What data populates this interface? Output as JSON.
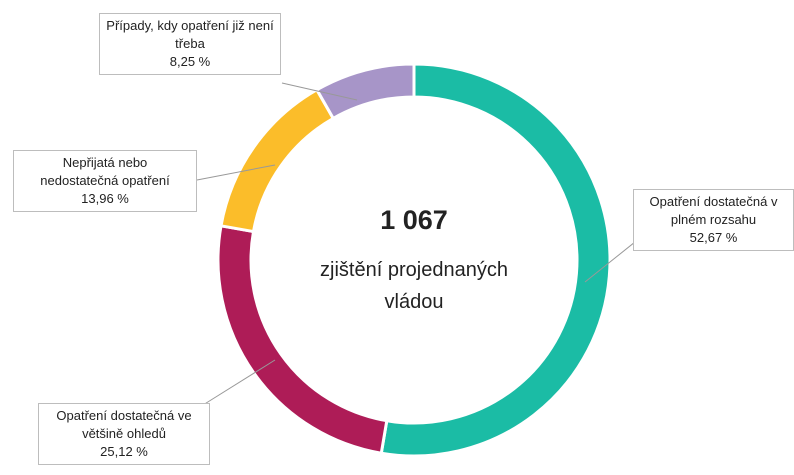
{
  "chart_data": {
    "type": "donut",
    "categories": [
      "Opatření dostatečná v plném rozsahu",
      "Opatření dostatečná ve většině ohledů",
      "Nepřijatá nebo nedostatečná opatření",
      "Případy, kdy opatření již není třeba"
    ],
    "values": [
      52.67,
      25.12,
      13.96,
      8.25
    ],
    "value_labels": [
      "52,67 %",
      "25,12 %",
      "13,96 %",
      "8,25 %"
    ],
    "colors": [
      "#1bbca5",
      "#ae1c57",
      "#fbbd2a",
      "#a795c8"
    ],
    "center_title": "1 067",
    "center_text": "zjištění projednaných vládou"
  }
}
